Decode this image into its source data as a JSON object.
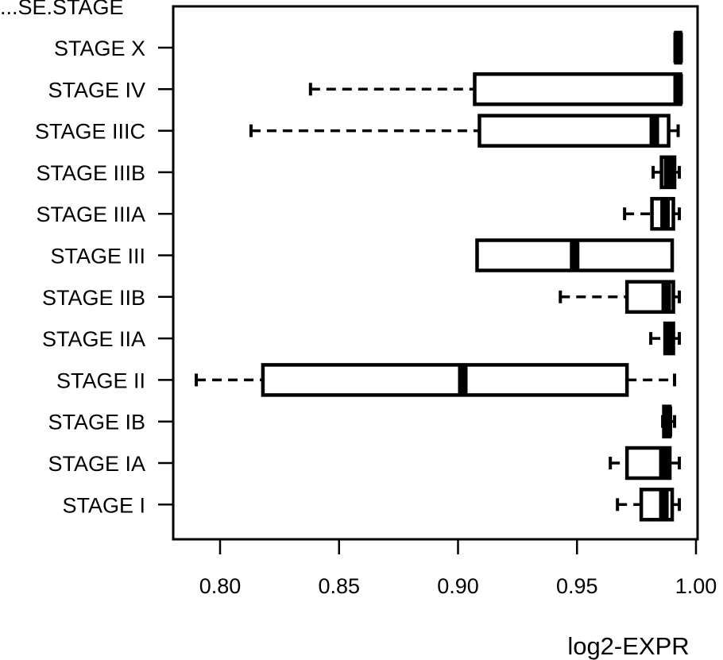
{
  "chart_data": {
    "type": "boxplot",
    "orientation": "horizontal",
    "title": "...SE.STAGE",
    "xlabel": "log2-EXPR",
    "ylabel": "",
    "xlim": [
      0.78,
      1.0
    ],
    "x_ticks": [
      "0.80",
      "0.85",
      "0.90",
      "0.95",
      "1.00"
    ],
    "x_tick_values": [
      0.8,
      0.85,
      0.9,
      0.95,
      1.0
    ],
    "grid": false,
    "legend": "none",
    "categories": [
      "STAGE X",
      "STAGE IV",
      "STAGE IIIC",
      "STAGE IIIB",
      "STAGE IIIA",
      "STAGE III",
      "STAGE IIB",
      "STAGE IIA",
      "STAGE II",
      "STAGE IB",
      "STAGE IA",
      "STAGE I"
    ],
    "boxes": [
      {
        "label": "STAGE X",
        "min": 0.9915,
        "q1": 0.9915,
        "median": 0.9925,
        "q3": 0.9935,
        "max": 0.9935
      },
      {
        "label": "STAGE IV",
        "min": 0.838,
        "q1": 0.907,
        "median": 0.9925,
        "q3": 0.9935,
        "max": 0.9935
      },
      {
        "label": "STAGE IIIC",
        "min": 0.813,
        "q1": 0.909,
        "median": 0.9825,
        "q3": 0.9885,
        "max": 0.9925
      },
      {
        "label": "STAGE IIIB",
        "min": 0.982,
        "q1": 0.9855,
        "median": 0.9885,
        "q3": 0.991,
        "max": 0.993
      },
      {
        "label": "STAGE IIIA",
        "min": 0.97,
        "q1": 0.9815,
        "median": 0.987,
        "q3": 0.9905,
        "max": 0.993
      },
      {
        "label": "STAGE III",
        "min": 0.908,
        "q1": 0.908,
        "median": 0.949,
        "q3": 0.99,
        "max": 0.99
      },
      {
        "label": "STAGE IIB",
        "min": 0.943,
        "q1": 0.971,
        "median": 0.9875,
        "q3": 0.9905,
        "max": 0.993
      },
      {
        "label": "STAGE IIA",
        "min": 0.981,
        "q1": 0.987,
        "median": 0.989,
        "q3": 0.9905,
        "max": 0.993
      },
      {
        "label": "STAGE II",
        "min": 0.79,
        "q1": 0.818,
        "median": 0.902,
        "q3": 0.971,
        "max": 0.991
      },
      {
        "label": "STAGE IB",
        "min": 0.986,
        "q1": 0.9865,
        "median": 0.988,
        "q3": 0.989,
        "max": 0.991
      },
      {
        "label": "STAGE IA",
        "min": 0.964,
        "q1": 0.971,
        "median": 0.9865,
        "q3": 0.989,
        "max": 0.993
      },
      {
        "label": "STAGE I",
        "min": 0.967,
        "q1": 0.977,
        "median": 0.9865,
        "q3": 0.99,
        "max": 0.993
      }
    ]
  }
}
